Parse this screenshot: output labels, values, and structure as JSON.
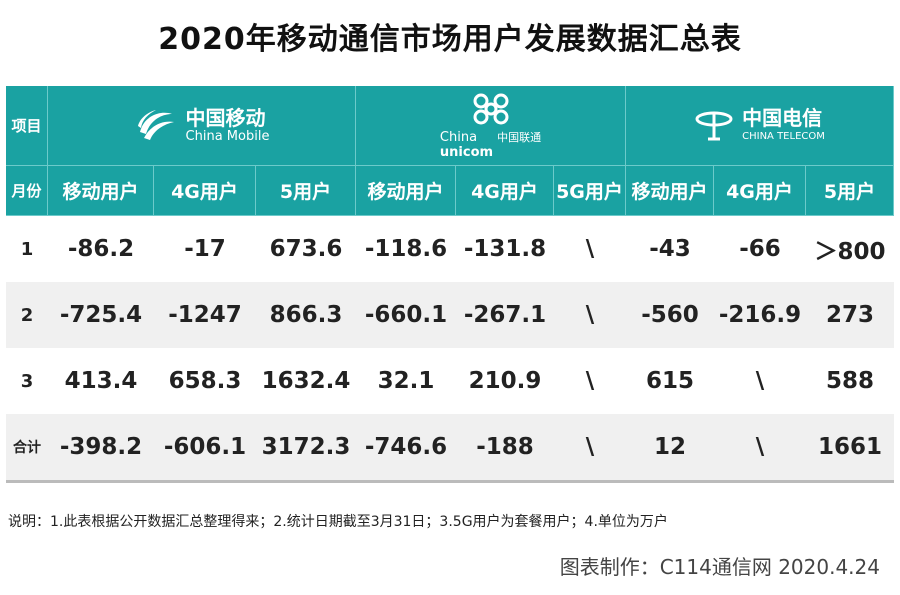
{
  "title": "2020年移动通信市场用户发展数据汇总表",
  "header": {
    "item_label": "项目",
    "month_label": "月份",
    "operators": [
      {
        "name_cn": "中国移动",
        "name_en": "China Mobile"
      },
      {
        "name_cn": "中国联通",
        "name_en_line1": "China",
        "name_en_line2": "unicom"
      },
      {
        "name_cn": "中国电信",
        "name_en": "CHINA TELECOM"
      }
    ],
    "columns": [
      "移动用户",
      "4G用户",
      "5用户",
      "移动用户",
      "4G用户",
      "5G用户",
      "移动用户",
      "4G用户",
      "5用户"
    ]
  },
  "rows": [
    {
      "label": "1",
      "values": [
        "-86.2",
        "-17",
        "673.6",
        "-118.6",
        "-131.8",
        "\\",
        "-43",
        "-66",
        "＞800"
      ]
    },
    {
      "label": "2",
      "values": [
        "-725.4",
        "-1247",
        "866.3",
        "-660.1",
        "-267.1",
        "\\",
        "-560",
        "-216.9",
        "273"
      ]
    },
    {
      "label": "3",
      "values": [
        "413.4",
        "658.3",
        "1632.4",
        "32.1",
        "210.9",
        "\\",
        "615",
        "\\",
        "588"
      ]
    },
    {
      "label": "合计",
      "values": [
        "-398.2",
        "-606.1",
        "3172.3",
        "-746.6",
        "-188",
        "\\",
        "12",
        "\\",
        "1661"
      ]
    }
  ],
  "note": "说明：1.此表根据公开数据汇总整理得来；2.统计日期截至3月31日；3.5G用户为套餐用户；4.单位为万户",
  "credit": "图表制作：C114通信网  2020.4.24",
  "colors": {
    "header_teal": "#1aa2a2",
    "row_alt": "#f0f0f0"
  }
}
